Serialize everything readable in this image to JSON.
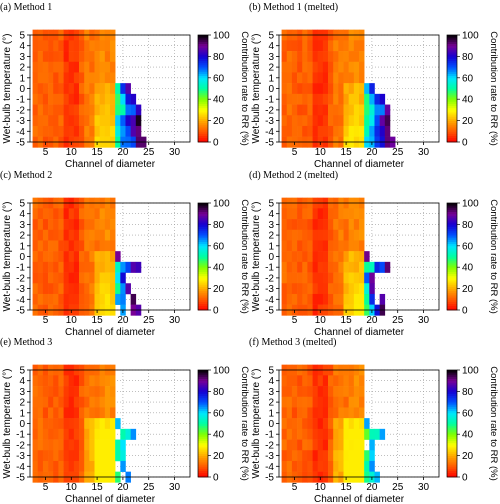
{
  "chart_data": [
    {
      "type": "heatmap",
      "title": "(a) Method 1",
      "xlabel": "Channel of diameter",
      "ylabel": "Wet-bulb temperature (°)",
      "xlim": [
        2,
        33
      ],
      "ylim": [
        -5,
        5
      ],
      "x_ticks": [
        5,
        10,
        15,
        20,
        25,
        30
      ],
      "y_ticks": [
        5,
        4,
        3,
        2,
        1,
        0,
        -1,
        -2,
        -3,
        -4,
        -5
      ],
      "colorbar": {
        "label": "Contribution rate to RR (%)",
        "min": 0,
        "max": 100,
        "ticks": [
          0,
          20,
          40,
          60,
          80,
          100
        ]
      },
      "row_extent": [
        18,
        18,
        18,
        18,
        18,
        21,
        22,
        23,
        23,
        23,
        24
      ]
    },
    {
      "type": "heatmap",
      "title": "(b) Method 1 (melted)",
      "xlabel": "Channel of diameter",
      "ylabel": "Wet-bulb temperature (°)",
      "xlim": [
        2,
        33
      ],
      "ylim": [
        -5,
        5
      ],
      "x_ticks": [
        5,
        10,
        15,
        20,
        25,
        30
      ],
      "y_ticks": [
        5,
        4,
        3,
        2,
        1,
        0,
        -1,
        -2,
        -3,
        -4,
        -5
      ],
      "colorbar": {
        "label": "Contribution rate to RR (%)",
        "min": 0,
        "max": 100,
        "ticks": [
          0,
          20,
          40,
          60,
          80,
          100
        ]
      },
      "row_extent": [
        18,
        18,
        18,
        18,
        18,
        20,
        22,
        23,
        23,
        23,
        24
      ]
    },
    {
      "type": "heatmap",
      "title": "(c) Method 2",
      "xlabel": "Channel of diameter",
      "ylabel": "Wet-bulb temperature (°)",
      "xlim": [
        2,
        33
      ],
      "ylim": [
        -5,
        5
      ],
      "x_ticks": [
        5,
        10,
        15,
        20,
        25,
        30
      ],
      "y_ticks": [
        5,
        4,
        3,
        2,
        1,
        0,
        -1,
        -2,
        -3,
        -4,
        -5
      ],
      "colorbar": {
        "label": "Contribution rate to RR (%)",
        "min": 0,
        "max": 100,
        "ticks": [
          0,
          20,
          40,
          60,
          80,
          100
        ]
      },
      "row_extent": [
        18,
        18,
        18,
        18,
        18,
        19,
        23,
        20,
        21,
        22,
        23
      ]
    },
    {
      "type": "heatmap",
      "title": "(d) Method 2 (melted)",
      "xlabel": "Channel of diameter",
      "ylabel": "Wet-bulb temperature (°)",
      "xlim": [
        2,
        33
      ],
      "ylim": [
        -5,
        5
      ],
      "x_ticks": [
        5,
        10,
        15,
        20,
        25,
        30
      ],
      "y_ticks": [
        5,
        4,
        3,
        2,
        1,
        0,
        -1,
        -2,
        -3,
        -4,
        -5
      ],
      "colorbar": {
        "label": "Contribution rate to RR (%)",
        "min": 0,
        "max": 100,
        "ticks": [
          0,
          20,
          40,
          60,
          80,
          100
        ]
      },
      "row_extent": [
        18,
        18,
        18,
        18,
        18,
        19,
        23,
        20,
        20,
        22,
        22
      ]
    },
    {
      "type": "heatmap",
      "title": "(e) Method 3",
      "xlabel": "Channel of diameter",
      "ylabel": "Wet-bulb temperature (°)",
      "xlim": [
        2,
        33
      ],
      "ylim": [
        -5,
        5
      ],
      "x_ticks": [
        5,
        10,
        15,
        20,
        25,
        30
      ],
      "y_ticks": [
        5,
        4,
        3,
        2,
        1,
        0,
        -1,
        -2,
        -3,
        -4,
        -5
      ],
      "colorbar": {
        "label": "Contribution rate to RR (%)",
        "min": 0,
        "max": 100,
        "ticks": [
          0,
          20,
          40,
          60,
          80,
          100
        ]
      },
      "row_extent": [
        18,
        18,
        18,
        18,
        18,
        19,
        22,
        20,
        20,
        20,
        21
      ]
    },
    {
      "type": "heatmap",
      "title": "(f) Method 3 (melted)",
      "xlabel": "Channel of diameter",
      "ylabel": "Wet-bulb temperature (°)",
      "xlim": [
        2,
        33
      ],
      "ylim": [
        -5,
        5
      ],
      "x_ticks": [
        5,
        10,
        15,
        20,
        25,
        30
      ],
      "y_ticks": [
        5,
        4,
        3,
        2,
        1,
        0,
        -1,
        -2,
        -3,
        -4,
        -5
      ],
      "colorbar": {
        "label": "Contribution rate to RR (%)",
        "min": 0,
        "max": 100,
        "ticks": [
          0,
          20,
          40,
          60,
          80,
          100
        ]
      },
      "row_extent": [
        18,
        18,
        18,
        18,
        18,
        19,
        22,
        20,
        20,
        20,
        21
      ]
    }
  ]
}
